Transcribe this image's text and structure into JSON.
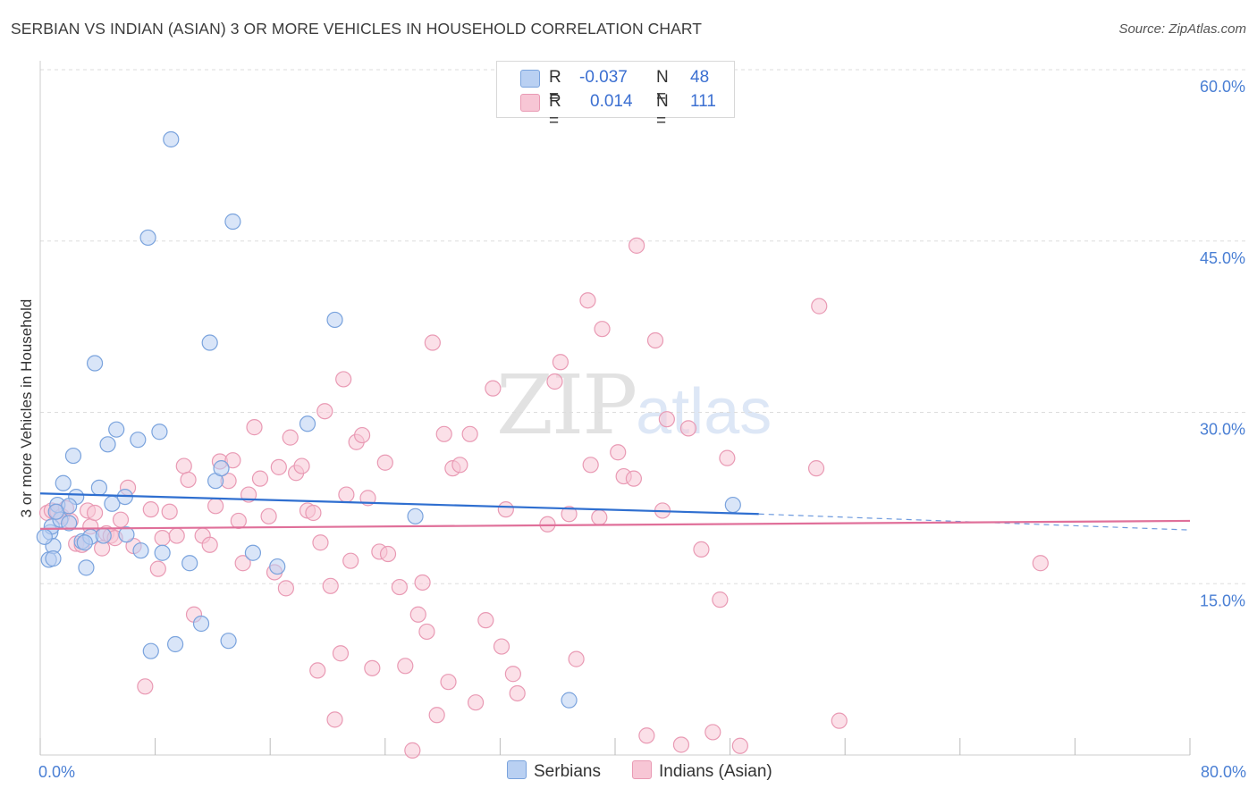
{
  "title": "SERBIAN VS INDIAN (ASIAN) 3 OR MORE VEHICLES IN HOUSEHOLD CORRELATION CHART",
  "source": "Source: ZipAtlas.com",
  "watermark": {
    "zip": "ZIP",
    "atlas": "atlas"
  },
  "legend": {
    "r_label": "R =",
    "n_label": "N =",
    "serbians": {
      "r": "-0.037",
      "n": "48"
    },
    "indians": {
      "r": "0.014",
      "n": "111"
    }
  },
  "bottom_legend": {
    "serbians": "Serbians",
    "indians": "Indians (Asian)"
  },
  "colors": {
    "serbians_fill": "#b9d0f2",
    "serbians_stroke": "#7aa3dd",
    "serbians_line": "#2f6fd0",
    "indians_fill": "#f7c6d5",
    "indians_stroke": "#e99ab4",
    "indians_line": "#e0709a",
    "tick_text": "#4a7fd4",
    "grid": "#dddddd"
  },
  "chart_data": {
    "type": "scatter",
    "title": "SERBIAN VS INDIAN (ASIAN) 3 OR MORE VEHICLES IN HOUSEHOLD CORRELATION CHART",
    "xlabel": "",
    "ylabel": "3 or more Vehicles in Household",
    "xlim": [
      0,
      80
    ],
    "ylim": [
      0,
      60
    ],
    "x_tick_labels": [
      "0.0%",
      "80.0%"
    ],
    "y_ticks": [
      15,
      30,
      45,
      60
    ],
    "y_tick_labels": [
      "15.0%",
      "30.0%",
      "45.0%",
      "60.0%"
    ],
    "grid": true,
    "legend_position": "top-center",
    "series": [
      {
        "name": "Serbians",
        "r": -0.037,
        "n": 48,
        "trend": {
          "x": [
            0,
            50,
            80
          ],
          "y": [
            22.9,
            21.1,
            19.7
          ],
          "solid_until": 50
        },
        "points": [
          [
            0.6,
            17.1
          ],
          [
            0.7,
            19.5
          ],
          [
            0.8,
            20.0
          ],
          [
            0.9,
            18.3
          ],
          [
            1.2,
            21.9
          ],
          [
            1.4,
            20.6
          ],
          [
            1.6,
            23.8
          ],
          [
            2.0,
            20.3
          ],
          [
            2.3,
            26.2
          ],
          [
            2.5,
            22.6
          ],
          [
            2.9,
            18.7
          ],
          [
            3.2,
            16.4
          ],
          [
            3.5,
            19.1
          ],
          [
            3.8,
            34.3
          ],
          [
            4.1,
            23.4
          ],
          [
            4.4,
            19.2
          ],
          [
            4.7,
            27.2
          ],
          [
            5.0,
            22.0
          ],
          [
            5.3,
            28.5
          ],
          [
            5.9,
            22.6
          ],
          [
            6.0,
            19.3
          ],
          [
            6.8,
            27.6
          ],
          [
            7.0,
            17.9
          ],
          [
            7.7,
            9.1
          ],
          [
            8.3,
            28.3
          ],
          [
            8.5,
            17.7
          ],
          [
            9.4,
            9.7
          ],
          [
            10.4,
            16.8
          ],
          [
            11.2,
            11.5
          ],
          [
            11.8,
            36.1
          ],
          [
            12.2,
            24.0
          ],
          [
            12.6,
            25.1
          ],
          [
            13.1,
            10.0
          ],
          [
            14.8,
            17.7
          ],
          [
            16.5,
            16.5
          ],
          [
            18.6,
            29.0
          ],
          [
            20.5,
            38.1
          ],
          [
            26.1,
            20.9
          ],
          [
            36.8,
            4.8
          ],
          [
            48.2,
            21.9
          ],
          [
            9.1,
            53.9
          ],
          [
            7.5,
            45.3
          ],
          [
            13.4,
            46.7
          ],
          [
            0.9,
            17.2
          ],
          [
            2.0,
            21.8
          ],
          [
            3.1,
            18.6
          ],
          [
            1.1,
            21.3
          ],
          [
            0.3,
            19.1
          ]
        ]
      },
      {
        "name": "Indians (Asian)",
        "r": 0.014,
        "n": 111,
        "trend": {
          "x": [
            0,
            80
          ],
          "y": [
            19.8,
            20.5
          ]
        },
        "points": [
          [
            0.5,
            21.2
          ],
          [
            0.8,
            21.4
          ],
          [
            1.2,
            21.3
          ],
          [
            1.5,
            20.9
          ],
          [
            1.8,
            21.6
          ],
          [
            2.1,
            20.5
          ],
          [
            2.5,
            18.5
          ],
          [
            2.9,
            18.4
          ],
          [
            3.3,
            21.4
          ],
          [
            3.5,
            20.0
          ],
          [
            3.8,
            21.2
          ],
          [
            4.3,
            18.1
          ],
          [
            4.6,
            19.4
          ],
          [
            4.9,
            19.2
          ],
          [
            5.2,
            19.0
          ],
          [
            5.6,
            20.6
          ],
          [
            6.1,
            23.4
          ],
          [
            6.5,
            18.3
          ],
          [
            7.3,
            6.0
          ],
          [
            7.7,
            21.5
          ],
          [
            8.2,
            16.3
          ],
          [
            8.5,
            19.0
          ],
          [
            9.0,
            21.3
          ],
          [
            9.5,
            19.2
          ],
          [
            10.0,
            25.3
          ],
          [
            10.3,
            24.1
          ],
          [
            10.7,
            12.3
          ],
          [
            11.3,
            19.2
          ],
          [
            11.8,
            18.4
          ],
          [
            12.2,
            21.8
          ],
          [
            12.5,
            25.7
          ],
          [
            13.1,
            24.0
          ],
          [
            13.4,
            25.8
          ],
          [
            13.8,
            20.5
          ],
          [
            14.1,
            16.8
          ],
          [
            14.5,
            22.8
          ],
          [
            14.9,
            28.7
          ],
          [
            15.3,
            24.2
          ],
          [
            15.9,
            20.9
          ],
          [
            16.3,
            16.0
          ],
          [
            16.6,
            25.2
          ],
          [
            17.1,
            14.6
          ],
          [
            17.4,
            27.8
          ],
          [
            17.8,
            24.7
          ],
          [
            18.2,
            25.3
          ],
          [
            18.6,
            21.4
          ],
          [
            19.0,
            21.2
          ],
          [
            19.3,
            7.4
          ],
          [
            19.5,
            18.6
          ],
          [
            19.8,
            30.1
          ],
          [
            20.2,
            14.8
          ],
          [
            20.5,
            3.1
          ],
          [
            20.9,
            8.9
          ],
          [
            21.1,
            32.9
          ],
          [
            21.3,
            22.8
          ],
          [
            21.6,
            17.0
          ],
          [
            22.0,
            27.4
          ],
          [
            22.4,
            28.0
          ],
          [
            22.8,
            22.5
          ],
          [
            23.1,
            7.6
          ],
          [
            23.6,
            17.8
          ],
          [
            24.0,
            25.6
          ],
          [
            24.2,
            17.6
          ],
          [
            25.0,
            14.7
          ],
          [
            25.4,
            7.8
          ],
          [
            25.9,
            0.4
          ],
          [
            26.3,
            12.3
          ],
          [
            26.6,
            15.1
          ],
          [
            26.9,
            10.8
          ],
          [
            27.3,
            36.1
          ],
          [
            27.6,
            3.5
          ],
          [
            28.1,
            28.1
          ],
          [
            28.4,
            6.4
          ],
          [
            28.7,
            25.1
          ],
          [
            29.2,
            25.4
          ],
          [
            29.9,
            28.1
          ],
          [
            30.3,
            4.6
          ],
          [
            31.0,
            11.8
          ],
          [
            31.5,
            32.1
          ],
          [
            32.1,
            9.5
          ],
          [
            32.4,
            21.5
          ],
          [
            32.9,
            7.1
          ],
          [
            33.2,
            5.4
          ],
          [
            35.3,
            20.2
          ],
          [
            35.8,
            32.7
          ],
          [
            36.2,
            34.4
          ],
          [
            36.8,
            21.1
          ],
          [
            37.3,
            8.4
          ],
          [
            38.1,
            39.8
          ],
          [
            38.3,
            25.4
          ],
          [
            38.9,
            20.8
          ],
          [
            39.1,
            37.3
          ],
          [
            40.2,
            26.5
          ],
          [
            40.6,
            24.4
          ],
          [
            41.3,
            24.2
          ],
          [
            41.5,
            44.6
          ],
          [
            42.2,
            1.7
          ],
          [
            42.8,
            36.3
          ],
          [
            43.3,
            21.4
          ],
          [
            43.6,
            29.4
          ],
          [
            44.6,
            0.9
          ],
          [
            45.1,
            28.6
          ],
          [
            46.0,
            18.0
          ],
          [
            46.8,
            2.0
          ],
          [
            47.3,
            13.6
          ],
          [
            47.8,
            26.0
          ],
          [
            48.7,
            0.8
          ],
          [
            54.0,
            25.1
          ],
          [
            54.2,
            39.3
          ],
          [
            55.6,
            3.0
          ],
          [
            69.6,
            16.8
          ]
        ]
      }
    ]
  }
}
